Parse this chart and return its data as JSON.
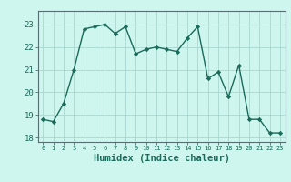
{
  "x": [
    0,
    1,
    2,
    3,
    4,
    5,
    6,
    7,
    8,
    9,
    10,
    11,
    12,
    13,
    14,
    15,
    16,
    17,
    18,
    19,
    20,
    21,
    22,
    23
  ],
  "y": [
    18.8,
    18.7,
    19.5,
    21.0,
    22.8,
    22.9,
    23.0,
    22.6,
    22.9,
    21.7,
    21.9,
    22.0,
    21.9,
    21.8,
    22.4,
    22.9,
    20.6,
    20.9,
    19.8,
    21.2,
    18.8,
    18.8,
    18.2,
    18.2
  ],
  "line_color": "#1a6b5a",
  "marker": "D",
  "marker_size": 2.2,
  "bg_color": "#cef5ee",
  "grid_color_minor": "#c0e8e0",
  "grid_color_major": "#a8d8d0",
  "xlabel": "Humidex (Indice chaleur)",
  "ylim": [
    17.8,
    23.6
  ],
  "xlim": [
    -0.5,
    23.5
  ],
  "yticks": [
    18,
    19,
    20,
    21,
    22,
    23
  ],
  "xticks": [
    0,
    1,
    2,
    3,
    4,
    5,
    6,
    7,
    8,
    9,
    10,
    11,
    12,
    13,
    14,
    15,
    16,
    17,
    18,
    19,
    20,
    21,
    22,
    23
  ],
  "tick_color": "#1a6b5a",
  "xlabel_fontsize": 7.5,
  "xtick_fontsize": 5.0,
  "ytick_fontsize": 6.5
}
